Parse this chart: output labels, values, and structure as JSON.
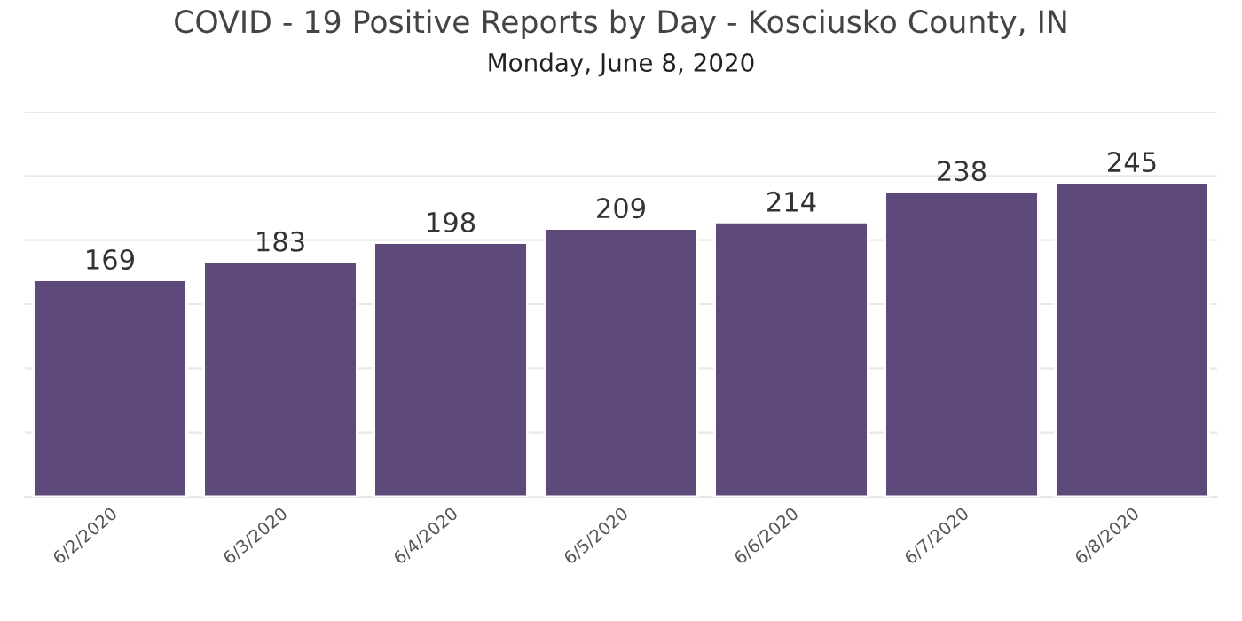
{
  "chart_data": {
    "type": "bar",
    "title": "COVID - 19 Positive Reports by Day - Kosciusko County, IN",
    "subtitle": "Monday, June 8, 2020",
    "categories": [
      "6/2/2020",
      "6/3/2020",
      "6/4/2020",
      "6/5/2020",
      "6/6/2020",
      "6/7/2020",
      "6/8/2020"
    ],
    "values": [
      169,
      183,
      198,
      209,
      214,
      238,
      245
    ],
    "color": "#5e4a7a",
    "data_labels": true,
    "ylim": [
      0,
      300
    ],
    "yticks": [
      {
        "value": 0,
        "label": null
      },
      {
        "value": 50,
        "label": null
      },
      {
        "value": 100,
        "label": null
      },
      {
        "value": 150,
        "label": null
      },
      {
        "value": 200,
        "label": null
      },
      {
        "value": 250,
        "label": null
      },
      {
        "value": 300,
        "label": null
      }
    ],
    "grid": "y",
    "tick_labels": "x"
  }
}
